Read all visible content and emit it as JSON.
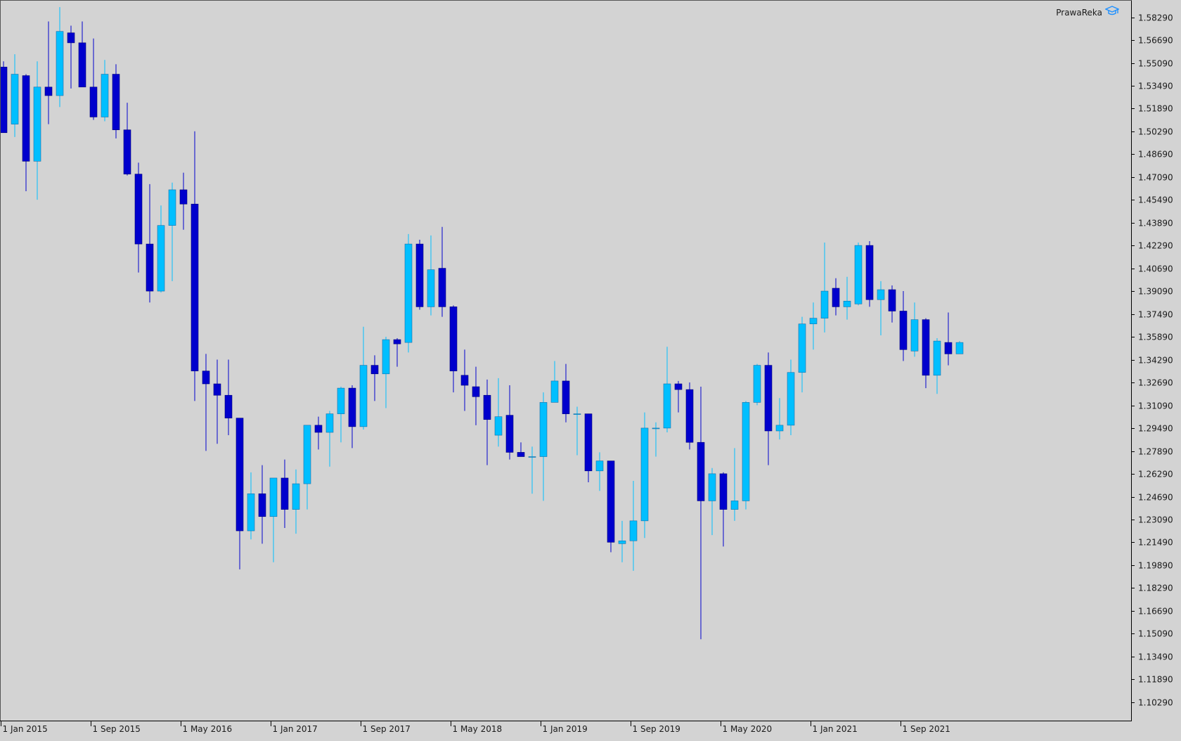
{
  "brand": {
    "label": "PrawaReka",
    "icon": "graduation-cap-icon"
  },
  "colors": {
    "background": "#d3d3d3",
    "bull": "#00bfff",
    "bear": "#0000cd",
    "axis": "#000000",
    "text": "#1a1a1a"
  },
  "chart_data": {
    "type": "candlestick",
    "timeframe": "monthly",
    "grid": false,
    "ylim": [
      1.09,
      1.595
    ],
    "y_ticks": [
      "1.58290",
      "1.56690",
      "1.55090",
      "1.53490",
      "1.51890",
      "1.50290",
      "1.48690",
      "1.47090",
      "1.45490",
      "1.43890",
      "1.42290",
      "1.40690",
      "1.39090",
      "1.37490",
      "1.35890",
      "1.34290",
      "1.32690",
      "1.31090",
      "1.29490",
      "1.27890",
      "1.26290",
      "1.24690",
      "1.23090",
      "1.21490",
      "1.19890",
      "1.18290",
      "1.16690",
      "1.15090",
      "1.13490",
      "1.11890",
      "1.10290"
    ],
    "x_labels": [
      {
        "label": "1 Jan 2015",
        "index": 0
      },
      {
        "label": "1 Sep 2015",
        "index": 8
      },
      {
        "label": "1 May 2016",
        "index": 16
      },
      {
        "label": "1 Jan 2017",
        "index": 24
      },
      {
        "label": "1 Sep 2017",
        "index": 32
      },
      {
        "label": "1 May 2018",
        "index": 40
      },
      {
        "label": "1 Jan 2019",
        "index": 48
      },
      {
        "label": "1 Sep 2019",
        "index": 56
      },
      {
        "label": "1 May 2020",
        "index": 64
      },
      {
        "label": "1 Jan 2021",
        "index": 72
      },
      {
        "label": "1 Sep 2021",
        "index": 80
      }
    ],
    "candles": [
      {
        "o": 1.548,
        "h": 1.552,
        "l": 1.502,
        "c": 1.502
      },
      {
        "o": 1.508,
        "h": 1.557,
        "l": 1.499,
        "c": 1.543
      },
      {
        "o": 1.542,
        "h": 1.543,
        "l": 1.461,
        "c": 1.482
      },
      {
        "o": 1.482,
        "h": 1.552,
        "l": 1.455,
        "c": 1.534
      },
      {
        "o": 1.534,
        "h": 1.58,
        "l": 1.508,
        "c": 1.528
      },
      {
        "o": 1.528,
        "h": 1.59,
        "l": 1.52,
        "c": 1.573
      },
      {
        "o": 1.572,
        "h": 1.577,
        "l": 1.533,
        "c": 1.565
      },
      {
        "o": 1.565,
        "h": 1.58,
        "l": 1.538,
        "c": 1.534
      },
      {
        "o": 1.534,
        "h": 1.568,
        "l": 1.511,
        "c": 1.513
      },
      {
        "o": 1.513,
        "h": 1.553,
        "l": 1.51,
        "c": 1.543
      },
      {
        "o": 1.543,
        "h": 1.55,
        "l": 1.498,
        "c": 1.504
      },
      {
        "o": 1.504,
        "h": 1.523,
        "l": 1.472,
        "c": 1.473
      },
      {
        "o": 1.473,
        "h": 1.481,
        "l": 1.404,
        "c": 1.424
      },
      {
        "o": 1.424,
        "h": 1.466,
        "l": 1.383,
        "c": 1.391
      },
      {
        "o": 1.391,
        "h": 1.451,
        "l": 1.39,
        "c": 1.437
      },
      {
        "o": 1.437,
        "h": 1.467,
        "l": 1.398,
        "c": 1.462
      },
      {
        "o": 1.462,
        "h": 1.474,
        "l": 1.434,
        "c": 1.452
      },
      {
        "o": 1.452,
        "h": 1.503,
        "l": 1.314,
        "c": 1.335
      },
      {
        "o": 1.335,
        "h": 1.347,
        "l": 1.279,
        "c": 1.326
      },
      {
        "o": 1.326,
        "h": 1.343,
        "l": 1.284,
        "c": 1.318
      },
      {
        "o": 1.318,
        "h": 1.343,
        "l": 1.29,
        "c": 1.302
      },
      {
        "o": 1.302,
        "h": 1.299,
        "l": 1.196,
        "c": 1.223
      },
      {
        "o": 1.223,
        "h": 1.264,
        "l": 1.217,
        "c": 1.249
      },
      {
        "o": 1.249,
        "h": 1.269,
        "l": 1.214,
        "c": 1.233
      },
      {
        "o": 1.233,
        "h": 1.26,
        "l": 1.201,
        "c": 1.26
      },
      {
        "o": 1.26,
        "h": 1.273,
        "l": 1.225,
        "c": 1.238
      },
      {
        "o": 1.238,
        "h": 1.266,
        "l": 1.221,
        "c": 1.256
      },
      {
        "o": 1.256,
        "h": 1.297,
        "l": 1.238,
        "c": 1.297
      },
      {
        "o": 1.297,
        "h": 1.303,
        "l": 1.28,
        "c": 1.292
      },
      {
        "o": 1.292,
        "h": 1.307,
        "l": 1.268,
        "c": 1.305
      },
      {
        "o": 1.305,
        "h": 1.324,
        "l": 1.285,
        "c": 1.323
      },
      {
        "o": 1.323,
        "h": 1.325,
        "l": 1.281,
        "c": 1.296
      },
      {
        "o": 1.296,
        "h": 1.366,
        "l": 1.294,
        "c": 1.339
      },
      {
        "o": 1.339,
        "h": 1.346,
        "l": 1.314,
        "c": 1.333
      },
      {
        "o": 1.333,
        "h": 1.359,
        "l": 1.309,
        "c": 1.357
      },
      {
        "o": 1.357,
        "h": 1.358,
        "l": 1.338,
        "c": 1.354
      },
      {
        "o": 1.355,
        "h": 1.431,
        "l": 1.348,
        "c": 1.424
      },
      {
        "o": 1.424,
        "h": 1.427,
        "l": 1.378,
        "c": 1.38
      },
      {
        "o": 1.38,
        "h": 1.43,
        "l": 1.374,
        "c": 1.406
      },
      {
        "o": 1.407,
        "h": 1.436,
        "l": 1.373,
        "c": 1.38
      },
      {
        "o": 1.38,
        "h": 1.381,
        "l": 1.32,
        "c": 1.335
      },
      {
        "o": 1.332,
        "h": 1.35,
        "l": 1.307,
        "c": 1.325
      },
      {
        "o": 1.324,
        "h": 1.338,
        "l": 1.297,
        "c": 1.317
      },
      {
        "o": 1.318,
        "h": 1.329,
        "l": 1.269,
        "c": 1.301
      },
      {
        "o": 1.29,
        "h": 1.33,
        "l": 1.282,
        "c": 1.303
      },
      {
        "o": 1.304,
        "h": 1.325,
        "l": 1.273,
        "c": 1.278
      },
      {
        "o": 1.278,
        "h": 1.285,
        "l": 1.275,
        "c": 1.275
      },
      {
        "o": 1.275,
        "h": 1.282,
        "l": 1.249,
        "c": 1.275
      },
      {
        "o": 1.275,
        "h": 1.32,
        "l": 1.244,
        "c": 1.313
      },
      {
        "o": 1.313,
        "h": 1.342,
        "l": 1.313,
        "c": 1.328
      },
      {
        "o": 1.328,
        "h": 1.34,
        "l": 1.299,
        "c": 1.305
      },
      {
        "o": 1.305,
        "h": 1.31,
        "l": 1.276,
        "c": 1.305
      },
      {
        "o": 1.305,
        "h": 1.304,
        "l": 1.257,
        "c": 1.265
      },
      {
        "o": 1.265,
        "h": 1.278,
        "l": 1.251,
        "c": 1.272
      },
      {
        "o": 1.272,
        "h": 1.272,
        "l": 1.208,
        "c": 1.215
      },
      {
        "o": 1.214,
        "h": 1.23,
        "l": 1.201,
        "c": 1.216
      },
      {
        "o": 1.216,
        "h": 1.258,
        "l": 1.195,
        "c": 1.23
      },
      {
        "o": 1.23,
        "h": 1.306,
        "l": 1.218,
        "c": 1.295
      },
      {
        "o": 1.295,
        "h": 1.299,
        "l": 1.275,
        "c": 1.295
      },
      {
        "o": 1.295,
        "h": 1.352,
        "l": 1.292,
        "c": 1.326
      },
      {
        "o": 1.326,
        "h": 1.328,
        "l": 1.306,
        "c": 1.322
      },
      {
        "o": 1.322,
        "h": 1.327,
        "l": 1.28,
        "c": 1.285
      },
      {
        "o": 1.285,
        "h": 1.324,
        "l": 1.147,
        "c": 1.244
      },
      {
        "o": 1.244,
        "h": 1.267,
        "l": 1.22,
        "c": 1.263
      },
      {
        "o": 1.263,
        "h": 1.264,
        "l": 1.212,
        "c": 1.238
      },
      {
        "o": 1.238,
        "h": 1.281,
        "l": 1.23,
        "c": 1.244
      },
      {
        "o": 1.244,
        "h": 1.314,
        "l": 1.238,
        "c": 1.313
      },
      {
        "o": 1.313,
        "h": 1.34,
        "l": 1.311,
        "c": 1.339
      },
      {
        "o": 1.339,
        "h": 1.348,
        "l": 1.269,
        "c": 1.293
      },
      {
        "o": 1.293,
        "h": 1.316,
        "l": 1.287,
        "c": 1.297
      },
      {
        "o": 1.297,
        "h": 1.343,
        "l": 1.29,
        "c": 1.334
      },
      {
        "o": 1.334,
        "h": 1.373,
        "l": 1.32,
        "c": 1.368
      },
      {
        "o": 1.368,
        "h": 1.383,
        "l": 1.35,
        "c": 1.372
      },
      {
        "o": 1.372,
        "h": 1.425,
        "l": 1.362,
        "c": 1.391
      },
      {
        "o": 1.393,
        "h": 1.4,
        "l": 1.374,
        "c": 1.38
      },
      {
        "o": 1.38,
        "h": 1.401,
        "l": 1.371,
        "c": 1.384
      },
      {
        "o": 1.382,
        "h": 1.425,
        "l": 1.381,
        "c": 1.423
      },
      {
        "o": 1.423,
        "h": 1.426,
        "l": 1.38,
        "c": 1.385
      },
      {
        "o": 1.385,
        "h": 1.398,
        "l": 1.36,
        "c": 1.392
      },
      {
        "o": 1.392,
        "h": 1.395,
        "l": 1.369,
        "c": 1.377
      },
      {
        "o": 1.377,
        "h": 1.391,
        "l": 1.342,
        "c": 1.35
      },
      {
        "o": 1.349,
        "h": 1.383,
        "l": 1.345,
        "c": 1.371
      },
      {
        "o": 1.371,
        "h": 1.372,
        "l": 1.323,
        "c": 1.332
      },
      {
        "o": 1.332,
        "h": 1.358,
        "l": 1.319,
        "c": 1.356
      },
      {
        "o": 1.355,
        "h": 1.376,
        "l": 1.339,
        "c": 1.347
      },
      {
        "o": 1.347,
        "h": 1.356,
        "l": 1.347,
        "c": 1.355
      }
    ]
  }
}
